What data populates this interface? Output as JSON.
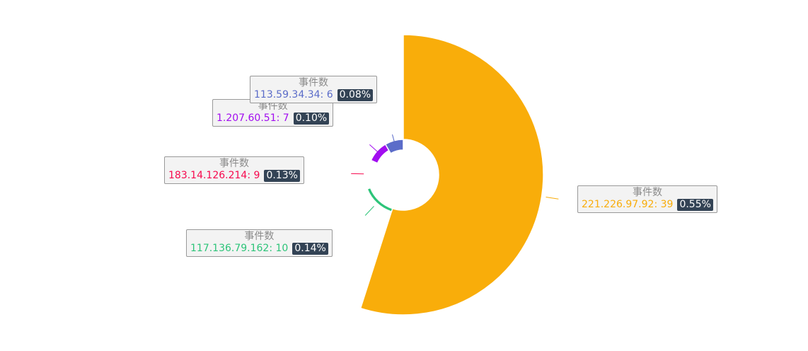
{
  "chart_data": {
    "type": "pie",
    "series_name": "事件数",
    "slices": [
      {
        "label": "221.226.97.92",
        "value": 39,
        "percent": "0.55%",
        "color": "#F9AD0A"
      },
      {
        "label": "117.136.79.162",
        "value": 10,
        "percent": "0.14%",
        "color": "#2DC479"
      },
      {
        "label": "183.14.126.214",
        "value": 9,
        "percent": "0.13%",
        "color": "#F7094E"
      },
      {
        "label": "1.207.60.51",
        "value": 7,
        "percent": "0.10%",
        "color": "#A20DF0"
      },
      {
        "label": "113.59.34.34",
        "value": 6,
        "percent": "0.08%",
        "color": "#5B6CC9"
      }
    ]
  }
}
